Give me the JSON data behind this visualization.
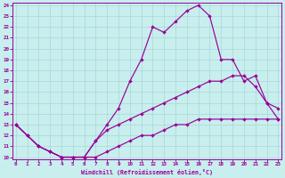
{
  "xlabel": "Windchill (Refroidissement éolien,°C)",
  "bg_color": "#c8eeed",
  "grid_color": "#a8d8d8",
  "line_color": "#990099",
  "xlim": [
    -0.3,
    23.3
  ],
  "ylim": [
    9.8,
    24.2
  ],
  "xticks": [
    0,
    1,
    2,
    3,
    4,
    5,
    6,
    7,
    8,
    9,
    10,
    11,
    12,
    13,
    14,
    15,
    16,
    17,
    18,
    19,
    20,
    21,
    22,
    23
  ],
  "yticks": [
    10,
    11,
    12,
    13,
    14,
    15,
    16,
    17,
    18,
    19,
    20,
    21,
    22,
    23,
    24
  ],
  "line1_x": [
    0,
    1,
    2,
    3,
    4,
    5,
    6,
    7,
    8,
    9,
    10,
    11,
    12,
    13,
    14,
    15,
    16,
    17,
    18,
    19,
    20,
    21,
    22,
    23
  ],
  "line1_y": [
    13.0,
    12.0,
    11.0,
    10.5,
    10.0,
    10.0,
    10.0,
    10.0,
    10.5,
    11.0,
    11.5,
    12.0,
    12.0,
    12.5,
    13.0,
    13.0,
    13.5,
    13.5,
    13.5,
    13.5,
    13.5,
    13.5,
    13.5,
    13.5
  ],
  "line2_x": [
    0,
    1,
    2,
    3,
    4,
    5,
    6,
    7,
    8,
    9,
    10,
    11,
    12,
    13,
    14,
    15,
    16,
    17,
    18,
    19,
    20,
    21,
    22,
    23
  ],
  "line2_y": [
    13.0,
    12.0,
    11.0,
    10.5,
    10.0,
    10.0,
    10.0,
    11.5,
    12.5,
    13.0,
    13.5,
    14.0,
    14.5,
    15.0,
    15.5,
    16.0,
    16.5,
    17.0,
    17.0,
    17.5,
    17.5,
    16.5,
    15.0,
    13.5
  ],
  "line3_x": [
    0,
    1,
    2,
    3,
    4,
    5,
    6,
    7,
    8,
    9,
    10,
    11,
    12,
    13,
    14,
    15,
    16,
    17,
    18,
    19,
    20,
    21,
    22,
    23
  ],
  "line3_y": [
    13.0,
    12.0,
    11.0,
    10.5,
    10.0,
    10.0,
    10.0,
    11.5,
    13.0,
    14.5,
    17.0,
    19.0,
    22.0,
    21.5,
    22.5,
    23.5,
    24.0,
    23.0,
    19.0,
    19.0,
    17.0,
    17.5,
    15.0,
    14.5
  ]
}
